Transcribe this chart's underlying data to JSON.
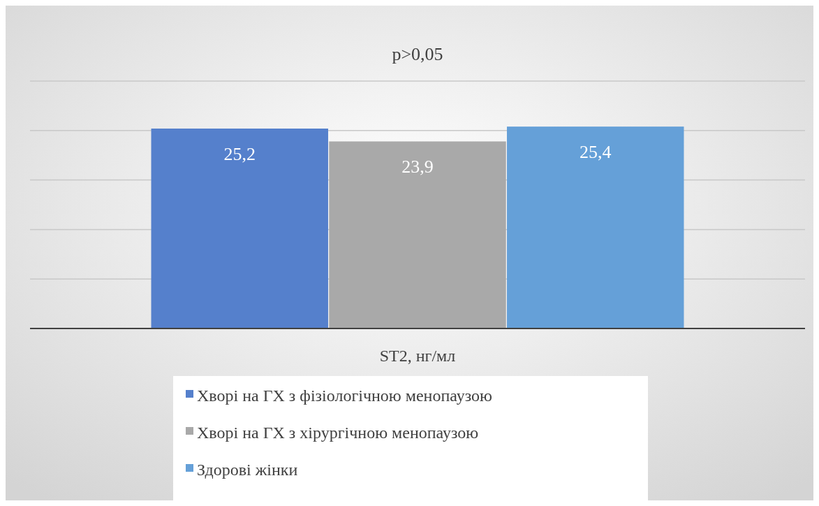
{
  "chart_data": {
    "type": "bar",
    "title": "p>0,05",
    "categories": [
      null
    ],
    "xlabel": "ST2, нг/мл",
    "series": [
      {
        "name": "Хворі на ГХ з фізіологічною менопаузою",
        "color": "#5580cc",
        "values": [
          25.2
        ],
        "value_labels": [
          "25,2"
        ]
      },
      {
        "name": "Хворі на ГХ з хірургічною менопаузою",
        "color": "#a9a9a9",
        "values": [
          23.9
        ],
        "value_labels": [
          "23,9"
        ]
      },
      {
        "name": "Здорові жінки",
        "color": "#65a0d8",
        "values": [
          25.4
        ],
        "value_labels": [
          "25,4"
        ]
      }
    ],
    "ylim": [
      5,
      30
    ],
    "yticks": [
      {
        "value": 10,
        "label": null
      },
      {
        "value": 15,
        "label": null
      },
      {
        "value": 20,
        "label": null
      },
      {
        "value": 25,
        "label": null
      },
      {
        "value": 30,
        "label": null
      }
    ],
    "grid": "y",
    "legend": "bottom"
  }
}
